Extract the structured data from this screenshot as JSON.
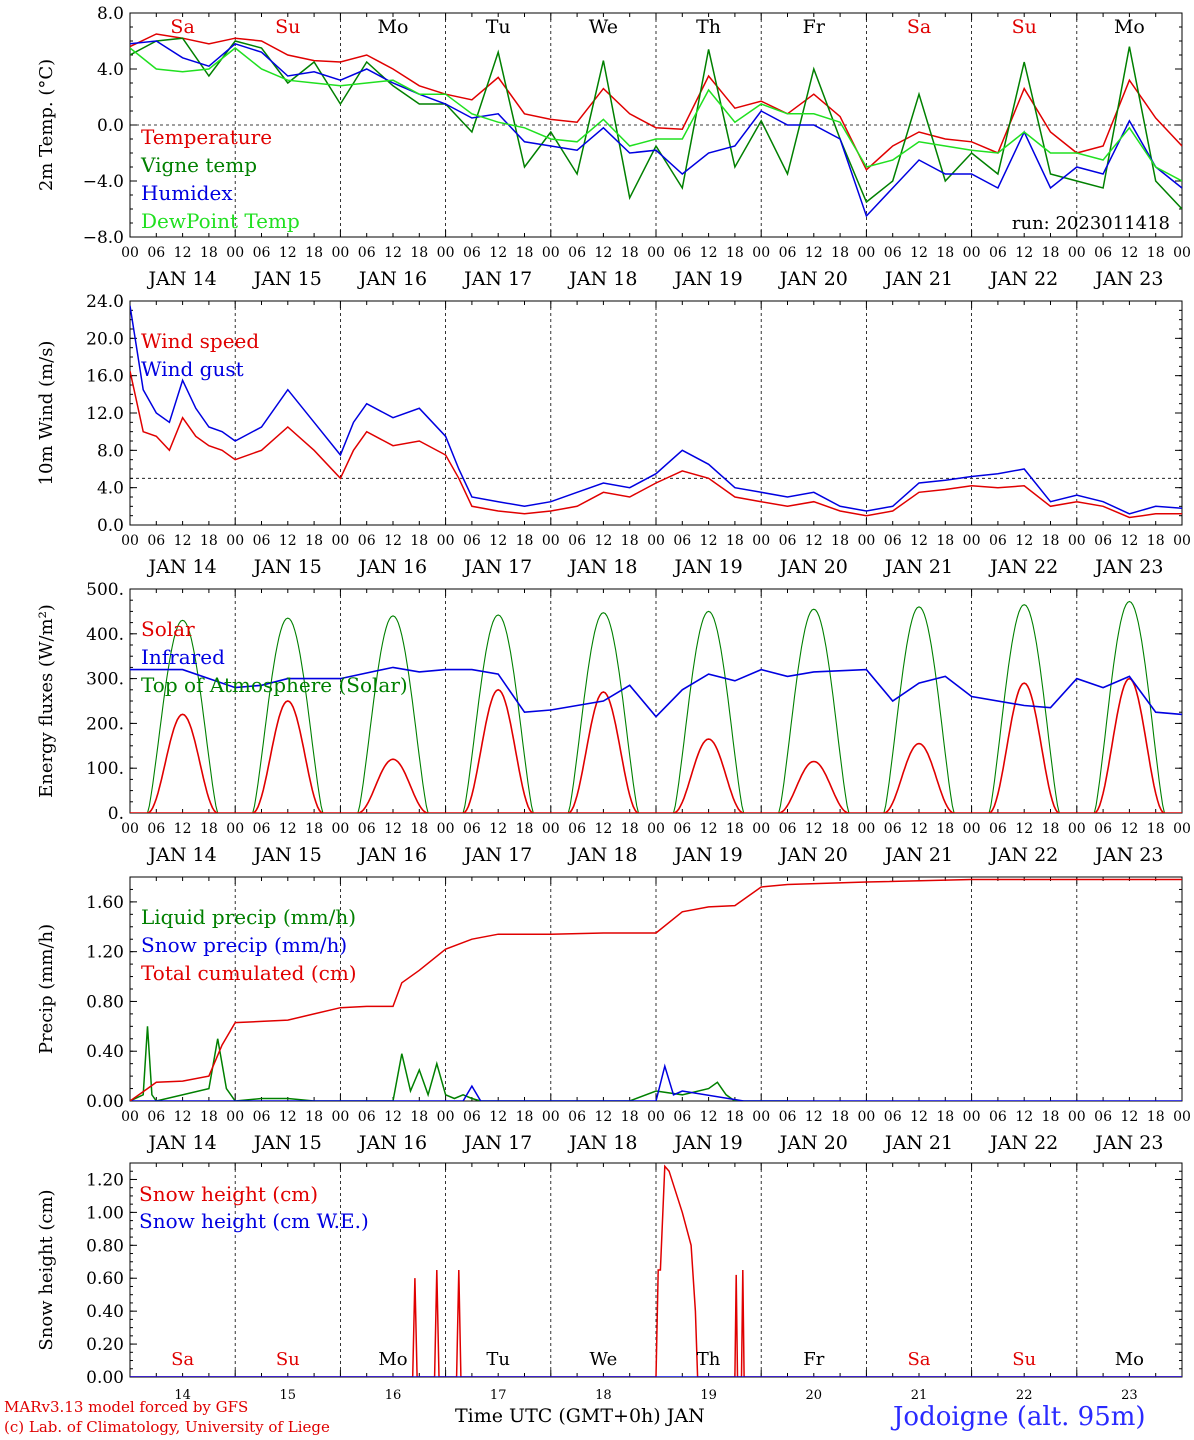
{
  "colors": {
    "red": "#e00000",
    "dark_green": "#008000",
    "blue": "#0000e0",
    "light_green": "#20e020",
    "weekend_day": "#e00000",
    "weekday": "#000000"
  },
  "footer": {
    "model": "MARv3.13 model forced by GFS",
    "lab": "(c) Lab. of Climatology, University of Liege",
    "x_title": "Time UTC (GMT+0h) JAN",
    "station": "Jodoigne (alt. 95m)"
  },
  "chart_data": [
    {
      "id": "temperature",
      "type": "line",
      "ylabel": "2m Temp. (°C)",
      "ylim": [
        -8,
        8
      ],
      "yticks": [
        "−8.0",
        "−4.0",
        "0.0",
        "4.0",
        "8.0"
      ],
      "reference_line": 0,
      "annotation": "run: 2023011418",
      "days_top": [
        "Sa",
        "Su",
        "Mo",
        "Tu",
        "We",
        "Th",
        "Fr",
        "Sa",
        "Su",
        "Mo"
      ],
      "x_hours": [
        "00",
        "06",
        "12",
        "18"
      ],
      "x_dates": [
        "JAN 14",
        "JAN 15",
        "JAN 16",
        "JAN 17",
        "JAN 18",
        "JAN 19",
        "JAN 20",
        "JAN 21",
        "JAN 22",
        "JAN 23"
      ],
      "x_unit": "hours since JAN 14 00 UTC",
      "series": [
        {
          "name": "Temperature",
          "color": "red",
          "x": [
            0,
            6,
            12,
            18,
            24,
            30,
            36,
            42,
            48,
            54,
            60,
            66,
            72,
            78,
            84,
            90,
            96,
            102,
            108,
            114,
            120,
            126,
            132,
            138,
            144,
            150,
            156,
            162,
            168,
            174,
            180,
            186,
            192,
            198,
            204,
            210,
            216,
            222,
            228,
            234,
            240
          ],
          "y": [
            5.6,
            6.5,
            6.2,
            5.8,
            6.2,
            6.0,
            5.0,
            4.6,
            4.5,
            5.0,
            4.0,
            2.8,
            2.2,
            1.8,
            3.4,
            0.8,
            0.4,
            0.2,
            2.6,
            0.8,
            -0.2,
            -0.3,
            3.5,
            1.2,
            1.7,
            0.8,
            2.2,
            0.6,
            -3.2,
            -1.5,
            -0.5,
            -1.0,
            -1.2,
            -2.0,
            2.6,
            -0.5,
            -2.0,
            -1.5,
            3.2,
            0.5,
            -1.5
          ]
        },
        {
          "name": "Vigne temp",
          "color": "dark_green",
          "x": [
            0,
            6,
            12,
            18,
            24,
            30,
            36,
            42,
            48,
            54,
            60,
            66,
            72,
            78,
            84,
            90,
            96,
            102,
            108,
            114,
            120,
            126,
            132,
            138,
            144,
            150,
            156,
            162,
            168,
            174,
            180,
            186,
            192,
            198,
            204,
            210,
            216,
            222,
            228,
            234,
            240
          ],
          "y": [
            5.0,
            6.0,
            6.2,
            3.5,
            6.0,
            5.5,
            3.0,
            4.5,
            1.5,
            4.5,
            2.8,
            1.5,
            1.5,
            -0.5,
            5.2,
            -3.0,
            -0.5,
            -3.5,
            4.6,
            -5.2,
            -1.5,
            -4.5,
            5.4,
            -3.0,
            0.3,
            -3.5,
            4.0,
            -1.0,
            -5.5,
            -4.0,
            2.2,
            -4.0,
            -2.0,
            -3.5,
            4.5,
            -3.5,
            -4.0,
            -4.5,
            5.6,
            -4.0,
            -6.0
          ]
        },
        {
          "name": "Humidex",
          "color": "blue",
          "x": [
            0,
            6,
            12,
            18,
            24,
            30,
            36,
            42,
            48,
            54,
            60,
            66,
            72,
            78,
            84,
            90,
            96,
            102,
            108,
            114,
            120,
            126,
            132,
            138,
            144,
            150,
            156,
            162,
            168,
            174,
            180,
            186,
            192,
            198,
            204,
            210,
            216,
            222,
            228,
            234,
            240
          ],
          "y": [
            5.8,
            6.0,
            4.8,
            4.2,
            5.8,
            5.2,
            3.5,
            3.8,
            3.2,
            4.0,
            3.0,
            2.2,
            1.5,
            0.5,
            0.8,
            -1.2,
            -1.5,
            -1.8,
            -0.2,
            -2.0,
            -1.8,
            -3.5,
            -2.0,
            -1.5,
            1.0,
            0.0,
            0.0,
            -1.0,
            -6.5,
            -4.5,
            -2.5,
            -3.5,
            -3.5,
            -4.5,
            -0.5,
            -4.5,
            -3.0,
            -3.5,
            0.3,
            -3.0,
            -4.5
          ]
        },
        {
          "name": "DewPoint Temp",
          "color": "light_green",
          "x": [
            0,
            6,
            12,
            18,
            24,
            30,
            36,
            42,
            48,
            54,
            60,
            66,
            72,
            78,
            84,
            90,
            96,
            102,
            108,
            114,
            120,
            126,
            132,
            138,
            144,
            150,
            156,
            162,
            168,
            174,
            180,
            186,
            192,
            198,
            204,
            210,
            216,
            222,
            228,
            234,
            240
          ],
          "y": [
            5.5,
            4.0,
            3.8,
            4.0,
            5.5,
            4.0,
            3.2,
            3.0,
            2.8,
            3.0,
            3.2,
            2.2,
            2.2,
            0.8,
            0.2,
            -0.2,
            -1.0,
            -1.2,
            0.4,
            -1.5,
            -1.0,
            -1.0,
            2.5,
            0.2,
            1.5,
            0.8,
            0.8,
            0.2,
            -3.0,
            -2.5,
            -1.2,
            -1.5,
            -1.8,
            -2.0,
            -0.5,
            -2.0,
            -2.0,
            -2.5,
            -0.2,
            -3.0,
            -4.0
          ]
        }
      ]
    },
    {
      "id": "wind",
      "type": "line",
      "ylabel": "10m Wind (m/s)",
      "ylim": [
        0,
        24
      ],
      "yticks": [
        "0.0",
        "4.0",
        "8.0",
        "12.0",
        "16.0",
        "20.0",
        "24.0"
      ],
      "reference_line": 5,
      "x_hours": [
        "00",
        "06",
        "12",
        "18"
      ],
      "x_dates": [
        "JAN 14",
        "JAN 15",
        "JAN 16",
        "JAN 17",
        "JAN 18",
        "JAN 19",
        "JAN 20",
        "JAN 21",
        "JAN 22",
        "JAN 23"
      ],
      "series": [
        {
          "name": "Wind speed",
          "color": "red",
          "x": [
            0,
            3,
            6,
            9,
            12,
            15,
            18,
            21,
            24,
            30,
            36,
            42,
            48,
            51,
            54,
            60,
            66,
            72,
            75,
            78,
            84,
            90,
            96,
            102,
            108,
            114,
            120,
            126,
            132,
            138,
            144,
            150,
            156,
            162,
            168,
            174,
            180,
            186,
            192,
            198,
            204,
            210,
            216,
            222,
            228,
            234,
            240
          ],
          "y": [
            16.5,
            10.0,
            9.5,
            8.0,
            11.5,
            9.5,
            8.5,
            8.0,
            7.0,
            8.0,
            10.5,
            8.0,
            5.0,
            8.0,
            10.0,
            8.5,
            9.0,
            7.5,
            5.0,
            2.0,
            1.5,
            1.2,
            1.5,
            2.0,
            3.5,
            3.0,
            4.5,
            5.8,
            5.0,
            3.0,
            2.5,
            2.0,
            2.5,
            1.5,
            1.0,
            1.5,
            3.5,
            3.8,
            4.2,
            4.0,
            4.2,
            2.0,
            2.5,
            2.0,
            0.8,
            1.2,
            1.2
          ]
        },
        {
          "name": "Wind gust",
          "color": "blue",
          "x": [
            0,
            3,
            6,
            9,
            12,
            15,
            18,
            21,
            24,
            30,
            36,
            42,
            48,
            51,
            54,
            60,
            66,
            72,
            75,
            78,
            84,
            90,
            96,
            102,
            108,
            114,
            120,
            126,
            132,
            138,
            144,
            150,
            156,
            162,
            168,
            174,
            180,
            186,
            192,
            198,
            204,
            210,
            216,
            222,
            228,
            234,
            240
          ],
          "y": [
            23.5,
            14.5,
            12.0,
            11.0,
            15.5,
            12.5,
            10.5,
            10.0,
            9.0,
            10.5,
            14.5,
            11.0,
            7.5,
            11.0,
            13.0,
            11.5,
            12.5,
            9.5,
            6.0,
            3.0,
            2.5,
            2.0,
            2.5,
            3.5,
            4.5,
            4.0,
            5.5,
            8.0,
            6.5,
            4.0,
            3.5,
            3.0,
            3.5,
            2.0,
            1.5,
            2.0,
            4.5,
            4.8,
            5.2,
            5.5,
            6.0,
            2.5,
            3.2,
            2.5,
            1.2,
            2.0,
            1.8
          ]
        }
      ]
    },
    {
      "id": "energy",
      "type": "line",
      "ylabel": "Energy fluxes (W/m²)",
      "ylim": [
        0,
        500
      ],
      "yticks": [
        "0.",
        "100.",
        "200.",
        "300.",
        "400.",
        "500."
      ],
      "x_hours": [
        "00",
        "06",
        "12",
        "18"
      ],
      "x_dates": [
        "JAN 14",
        "JAN 15",
        "JAN 16",
        "JAN 17",
        "JAN 18",
        "JAN 19",
        "JAN 20",
        "JAN 21",
        "JAN 22",
        "JAN 23"
      ],
      "solar_peaks": [
        220,
        250,
        120,
        275,
        270,
        165,
        115,
        155,
        290,
        300
      ],
      "toa_peaks": [
        430,
        435,
        440,
        442,
        447,
        450,
        455,
        460,
        465,
        472
      ],
      "series": [
        {
          "name": "Solar",
          "color": "red"
        },
        {
          "name": "Infrared",
          "color": "blue",
          "x": [
            0,
            12,
            24,
            30,
            36,
            48,
            60,
            66,
            72,
            78,
            84,
            90,
            96,
            108,
            114,
            120,
            126,
            132,
            138,
            144,
            150,
            156,
            168,
            174,
            180,
            186,
            192,
            204,
            210,
            216,
            222,
            228,
            234,
            240
          ],
          "y": [
            320,
            320,
            280,
            285,
            300,
            300,
            325,
            315,
            320,
            320,
            310,
            225,
            230,
            250,
            285,
            215,
            275,
            310,
            295,
            320,
            305,
            315,
            320,
            250,
            290,
            305,
            260,
            240,
            235,
            300,
            280,
            305,
            225,
            220
          ]
        },
        {
          "name": "Top of Atmosphere (Solar)",
          "color": "dark_green"
        }
      ]
    },
    {
      "id": "precip",
      "type": "line",
      "ylabel": "Precip (mm/h)",
      "ylim": [
        0,
        1.8
      ],
      "yticks": [
        "0.00",
        "0.40",
        "0.80",
        "1.20",
        "1.60"
      ],
      "x_hours": [
        "00",
        "06",
        "12",
        "18"
      ],
      "x_dates": [
        "JAN 14",
        "JAN 15",
        "JAN 16",
        "JAN 17",
        "JAN 18",
        "JAN 19",
        "JAN 20",
        "JAN 21",
        "JAN 22",
        "JAN 23"
      ],
      "series": [
        {
          "name": "Liquid precip (mm/h)",
          "color": "dark_green",
          "x": [
            0,
            3,
            4,
            5,
            6,
            18,
            20,
            22,
            24,
            30,
            36,
            42,
            60,
            62,
            64,
            66,
            68,
            70,
            72,
            74,
            76,
            78,
            80,
            114,
            120,
            126,
            132,
            134,
            136,
            138,
            144,
            150
          ],
          "y": [
            0,
            0.05,
            0.6,
            0.05,
            0,
            0.1,
            0.5,
            0.1,
            0,
            0.02,
            0.02,
            0,
            0,
            0.38,
            0.08,
            0.25,
            0.05,
            0.3,
            0.05,
            0.02,
            0.05,
            0.02,
            0,
            0,
            0.08,
            0.05,
            0.1,
            0.15,
            0.05,
            0,
            0,
            0
          ]
        },
        {
          "name": "Snow precip (mm/h)",
          "color": "blue",
          "x": [
            0,
            76,
            78,
            80,
            120,
            122,
            124,
            126,
            140,
            240
          ],
          "y": [
            0,
            0,
            0.12,
            0,
            0,
            0.28,
            0.05,
            0.08,
            0,
            0
          ]
        },
        {
          "name": "Total cumulated (cm)",
          "color": "red",
          "x": [
            0,
            4,
            6,
            12,
            18,
            21,
            24,
            30,
            36,
            42,
            48,
            54,
            60,
            62,
            66,
            72,
            78,
            84,
            96,
            108,
            120,
            126,
            132,
            138,
            144,
            150,
            168,
            192,
            216,
            240
          ],
          "y": [
            0,
            0.1,
            0.15,
            0.16,
            0.2,
            0.45,
            0.63,
            0.64,
            0.65,
            0.7,
            0.75,
            0.76,
            0.76,
            0.95,
            1.05,
            1.22,
            1.3,
            1.34,
            1.34,
            1.35,
            1.35,
            1.52,
            1.56,
            1.57,
            1.72,
            1.74,
            1.76,
            1.78,
            1.78,
            1.78
          ]
        }
      ]
    },
    {
      "id": "snow",
      "type": "line",
      "ylabel": "Snow height (cm)",
      "ylim": [
        0,
        1.3
      ],
      "yticks": [
        "0.00",
        "0.20",
        "0.40",
        "0.60",
        "0.80",
        "1.00",
        "1.20"
      ],
      "days_bottom": [
        "Sa",
        "Su",
        "Mo",
        "Tu",
        "We",
        "Th",
        "Fr",
        "Sa",
        "Su",
        "Mo"
      ],
      "x_date_numbers": [
        "14",
        "15",
        "16",
        "17",
        "18",
        "19",
        "20",
        "21",
        "22",
        "23"
      ],
      "series": [
        {
          "name": "Snow height (cm)",
          "color": "red",
          "x": [
            0,
            64.5,
            65,
            65.5,
            69.5,
            70,
            70.5,
            74.5,
            75,
            75.5,
            120,
            120.5,
            121,
            122,
            123,
            126,
            128,
            129,
            129.5,
            138,
            138.3,
            138.6,
            139.5,
            139.8,
            140.1,
            240
          ],
          "y": [
            0,
            0,
            0.6,
            0,
            0,
            0.65,
            0,
            0,
            0.65,
            0,
            0,
            0.65,
            0.65,
            1.28,
            1.25,
            1.0,
            0.8,
            0.4,
            0,
            0,
            0.62,
            0,
            0,
            0.65,
            0,
            0
          ]
        },
        {
          "name": "Snow height (cm W.E.)",
          "color": "blue",
          "x": [
            0,
            240
          ],
          "y": [
            0,
            0
          ]
        }
      ]
    }
  ]
}
